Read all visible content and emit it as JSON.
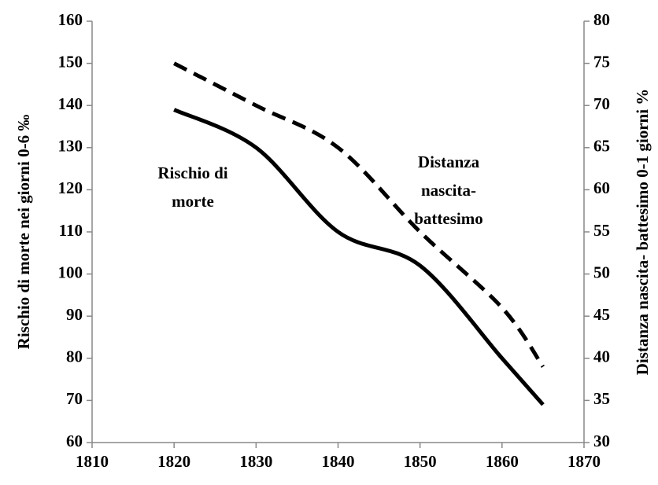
{
  "chart_data": {
    "type": "line",
    "ylabel": "Rischio di morte nei giorni 0-6 ‰",
    "y2label": "Distanza nascita- battesimo 0-1 giorni  %",
    "x": [
      1820,
      1830,
      1840,
      1850,
      1860,
      1865
    ],
    "series": [
      {
        "name": "Rischio di morte",
        "color": "#000000",
        "dash": false,
        "values": [
          139,
          130,
          110,
          102,
          80,
          69
        ]
      },
      {
        "name": "Distanza nascita-battesimo",
        "color": "#000000",
        "dash": true,
        "axis": "y2",
        "values": [
          75,
          70,
          65,
          55,
          46,
          39
        ]
      }
    ],
    "annotations": [
      [
        "Rischio di",
        "morte"
      ],
      [
        "Distanza",
        "nascita-",
        "battesimo"
      ]
    ],
    "xlim": [
      1810,
      1870
    ],
    "xticks": [
      1810,
      1820,
      1830,
      1840,
      1850,
      1860,
      1870
    ],
    "ylim": [
      60,
      160
    ],
    "yticks": [
      60,
      70,
      80,
      90,
      100,
      110,
      120,
      130,
      140,
      150,
      160
    ],
    "y2lim": [
      30,
      80
    ],
    "y2ticks": [
      30,
      35,
      40,
      45,
      50,
      55,
      60,
      65,
      70,
      75,
      80
    ],
    "grid": false
  }
}
